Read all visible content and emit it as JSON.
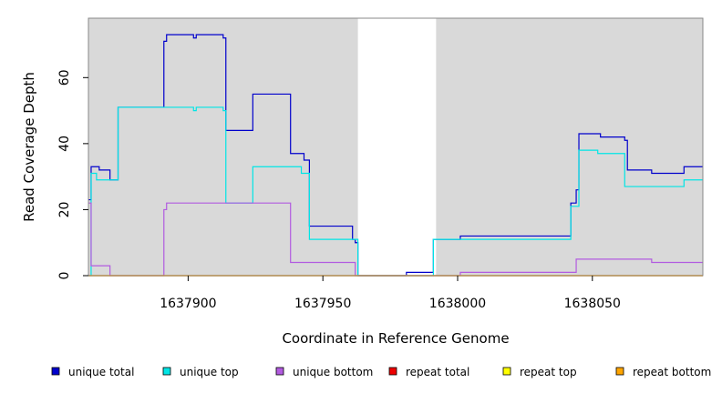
{
  "chart_data": {
    "type": "line",
    "title": "",
    "xlabel": "Coordinate in Reference Genome",
    "ylabel": "Read Coverage Depth",
    "xlim": [
      1637863,
      1638091
    ],
    "ylim": [
      0,
      78
    ],
    "x_ticks": [
      1637900,
      1637950,
      1638000,
      1638050
    ],
    "x_tick_labels": [
      "1637900",
      "1637950",
      "1638000",
      "1638050"
    ],
    "y_ticks": [
      0,
      20,
      40,
      60
    ],
    "y_tick_labels": [
      "0",
      "20",
      "40",
      "60"
    ],
    "grid": false,
    "background_regions": [
      [
        1637863,
        1637963
      ],
      [
        1637992,
        1638091
      ]
    ],
    "legend_position": "bottom",
    "series": [
      {
        "name": "unique total",
        "color": "#0000cc",
        "points": [
          [
            1637863,
            23
          ],
          [
            1637864,
            23
          ],
          [
            1637864,
            33
          ],
          [
            1637867,
            33
          ],
          [
            1637867,
            32
          ],
          [
            1637871,
            32
          ],
          [
            1637871,
            29
          ],
          [
            1637874,
            29
          ],
          [
            1637874,
            51
          ],
          [
            1637891,
            51
          ],
          [
            1637891,
            71
          ],
          [
            1637892,
            71
          ],
          [
            1637892,
            73
          ],
          [
            1637902,
            73
          ],
          [
            1637902,
            72
          ],
          [
            1637903,
            72
          ],
          [
            1637903,
            73
          ],
          [
            1637913,
            73
          ],
          [
            1637913,
            72
          ],
          [
            1637914,
            72
          ],
          [
            1637914,
            44
          ],
          [
            1637924,
            44
          ],
          [
            1637924,
            55
          ],
          [
            1637938,
            55
          ],
          [
            1637938,
            37
          ],
          [
            1637943,
            37
          ],
          [
            1637943,
            35
          ],
          [
            1637945,
            35
          ],
          [
            1637945,
            15
          ],
          [
            1637961,
            15
          ],
          [
            1637961,
            11
          ],
          [
            1637962,
            11
          ],
          [
            1637962,
            10
          ],
          [
            1637963,
            10
          ],
          [
            1637963,
            0
          ],
          [
            1637981,
            0
          ],
          [
            1637981,
            1
          ],
          [
            1637991,
            1
          ],
          [
            1637991,
            11
          ],
          [
            1638001,
            11
          ],
          [
            1638001,
            12
          ],
          [
            1638042,
            12
          ],
          [
            1638042,
            22
          ],
          [
            1638044,
            22
          ],
          [
            1638044,
            26
          ],
          [
            1638045,
            26
          ],
          [
            1638045,
            43
          ],
          [
            1638053,
            43
          ],
          [
            1638053,
            42
          ],
          [
            1638062,
            42
          ],
          [
            1638062,
            41
          ],
          [
            1638063,
            41
          ],
          [
            1638063,
            32
          ],
          [
            1638072,
            32
          ],
          [
            1638072,
            31
          ],
          [
            1638084,
            31
          ],
          [
            1638084,
            33
          ],
          [
            1638091,
            33
          ]
        ]
      },
      {
        "name": "unique top",
        "color": "#00e5e5",
        "points": [
          [
            1637863,
            0
          ],
          [
            1637864,
            0
          ],
          [
            1637864,
            31
          ],
          [
            1637866,
            31
          ],
          [
            1637866,
            29
          ],
          [
            1637874,
            29
          ],
          [
            1637874,
            51
          ],
          [
            1637902,
            51
          ],
          [
            1637902,
            50
          ],
          [
            1637903,
            50
          ],
          [
            1637903,
            51
          ],
          [
            1637913,
            51
          ],
          [
            1637913,
            50
          ],
          [
            1637914,
            50
          ],
          [
            1637914,
            22
          ],
          [
            1637924,
            22
          ],
          [
            1637924,
            33
          ],
          [
            1637942,
            33
          ],
          [
            1637942,
            31
          ],
          [
            1637945,
            31
          ],
          [
            1637945,
            11
          ],
          [
            1637963,
            11
          ],
          [
            1637963,
            0
          ],
          [
            1637991,
            0
          ],
          [
            1637991,
            11
          ],
          [
            1638042,
            11
          ],
          [
            1638042,
            21
          ],
          [
            1638045,
            21
          ],
          [
            1638045,
            38
          ],
          [
            1638052,
            38
          ],
          [
            1638052,
            37
          ],
          [
            1638062,
            37
          ],
          [
            1638062,
            27
          ],
          [
            1638084,
            27
          ],
          [
            1638084,
            29
          ],
          [
            1638091,
            29
          ]
        ]
      },
      {
        "name": "unique bottom",
        "color": "#b25be0",
        "points": [
          [
            1637863,
            22
          ],
          [
            1637864,
            22
          ],
          [
            1637864,
            3
          ],
          [
            1637871,
            3
          ],
          [
            1637871,
            0
          ],
          [
            1637891,
            0
          ],
          [
            1637891,
            20
          ],
          [
            1637892,
            20
          ],
          [
            1637892,
            22
          ],
          [
            1637938,
            22
          ],
          [
            1637938,
            4
          ],
          [
            1637962,
            4
          ],
          [
            1637962,
            0
          ],
          [
            1638001,
            0
          ],
          [
            1638001,
            1
          ],
          [
            1638044,
            1
          ],
          [
            1638044,
            5
          ],
          [
            1638072,
            5
          ],
          [
            1638072,
            4
          ],
          [
            1638091,
            4
          ]
        ]
      },
      {
        "name": "repeat total",
        "color": "#ee0000",
        "points": [
          [
            1637863,
            0
          ],
          [
            1638091,
            0
          ]
        ]
      },
      {
        "name": "repeat top",
        "color": "#ffff00",
        "points": [
          [
            1637863,
            0
          ],
          [
            1638091,
            0
          ]
        ]
      },
      {
        "name": "repeat bottom",
        "color": "#ffa500",
        "points": [
          [
            1637863,
            0
          ],
          [
            1638091,
            0
          ]
        ]
      }
    ]
  }
}
